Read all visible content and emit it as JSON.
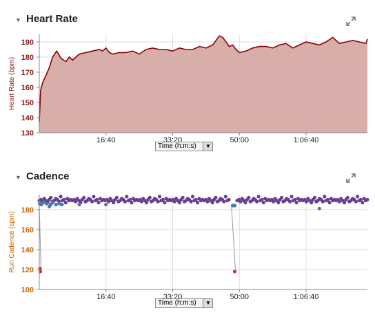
{
  "colors": {
    "hr_line": "#8b0000",
    "hr_fill": "#d4a5a2",
    "hr_axis_text": "#8b1a1a",
    "cadence_axis_text": "#c86400",
    "cadence_normal": "#6a3f8f",
    "cadence_blue": "#3f79b0",
    "cadence_low": "#b83a2a",
    "grid": "#dddddd"
  },
  "heart_rate_panel": {
    "title": "Heart Rate",
    "collapse_icon": "triangle-down-icon",
    "expand_icon": "expand-arrows-icon",
    "time_select": {
      "selected": "Time (h:m:s)",
      "icon": "chevron-down-icon"
    }
  },
  "cadence_panel": {
    "title": "Cadence",
    "collapse_icon": "triangle-down-icon",
    "expand_icon": "expand-arrows-icon",
    "time_select": {
      "selected": "Time (h:m:s)",
      "icon": "chevron-down-icon"
    }
  },
  "chart_data": [
    {
      "type": "area",
      "title": "Heart Rate",
      "ylabel": "Heart Rate (bpm)",
      "xlabel": "",
      "xlim": [
        0,
        4920
      ],
      "ylim": [
        130,
        195
      ],
      "yticks": [
        130,
        140,
        150,
        160,
        170,
        180,
        190
      ],
      "xticks": [
        {
          "value": 1000,
          "label": "16:40"
        },
        {
          "value": 2000,
          "label": "33:20"
        },
        {
          "value": 3000,
          "label": "50:00"
        },
        {
          "value": 4000,
          "label": "1:06:40"
        }
      ],
      "grid": true,
      "series": [
        {
          "x": [
            0,
            20,
            50,
            100,
            150,
            200,
            260,
            330,
            400,
            450,
            500,
            600,
            700,
            800,
            900,
            950,
            1000,
            1050,
            1100,
            1200,
            1300,
            1400,
            1500,
            1600,
            1700,
            1800,
            1900,
            2000,
            2100,
            2200,
            2300,
            2400,
            2500,
            2600,
            2700,
            2750,
            2800,
            2850,
            2900,
            2950,
            3000,
            3100,
            3200,
            3300,
            3400,
            3500,
            3600,
            3700,
            3800,
            3900,
            4000,
            4100,
            4200,
            4300,
            4400,
            4500,
            4600,
            4700,
            4800,
            4900,
            4920
          ],
          "y": [
            137,
            158,
            163,
            168,
            173,
            180,
            184,
            179,
            177,
            180,
            178,
            182,
            183,
            184,
            185,
            184,
            186,
            183,
            182,
            183,
            183,
            184,
            182,
            185,
            186,
            185,
            185,
            184,
            186,
            185,
            185,
            187,
            186,
            188,
            194,
            193,
            190,
            187,
            188,
            185,
            183,
            184,
            186,
            187,
            187,
            186,
            188,
            189,
            186,
            188,
            190,
            189,
            188,
            190,
            193,
            189,
            190,
            191,
            190,
            189,
            192
          ]
        }
      ]
    },
    {
      "type": "scatter",
      "title": "Cadence",
      "ylabel": "Run Cadence (spm)",
      "xlabel": "",
      "xlim": [
        0,
        4920
      ],
      "ylim": [
        100,
        195
      ],
      "yticks": [
        100,
        120,
        140,
        160,
        180
      ],
      "xticks": [
        {
          "value": 1000,
          "label": "16:40"
        },
        {
          "value": 2000,
          "label": "33:20"
        },
        {
          "value": 3000,
          "label": "50:00"
        },
        {
          "value": 4000,
          "label": "1:06:40"
        }
      ],
      "grid": true,
      "series": [
        {
          "name": "normal",
          "x_start": 0,
          "x_end": 4920,
          "count": 200,
          "y_pattern": [
            189,
            190,
            188,
            191,
            189,
            187,
            190,
            192,
            188,
            189,
            191,
            190,
            188,
            193,
            189,
            190,
            187,
            191,
            189,
            190
          ]
        },
        {
          "name": "low_speed",
          "x": [
            5,
            30,
            60,
            110,
            150,
            170,
            200,
            250,
            300,
            340,
            600,
            1000,
            2900,
            2930,
            4200
          ],
          "y": [
            186,
            185,
            187,
            186,
            183,
            185,
            187,
            185,
            186,
            185,
            185,
            185,
            184,
            184,
            181
          ]
        },
        {
          "name": "stopped",
          "x": [
            10,
            15,
            2930
          ],
          "y": [
            121,
            118,
            118
          ]
        },
        {
          "name": "drops",
          "x": [
            0,
            25,
            2880,
            2940,
            4250,
            4280
          ],
          "y": [
            185,
            120,
            185,
            120,
            188,
            190
          ]
        }
      ]
    }
  ]
}
